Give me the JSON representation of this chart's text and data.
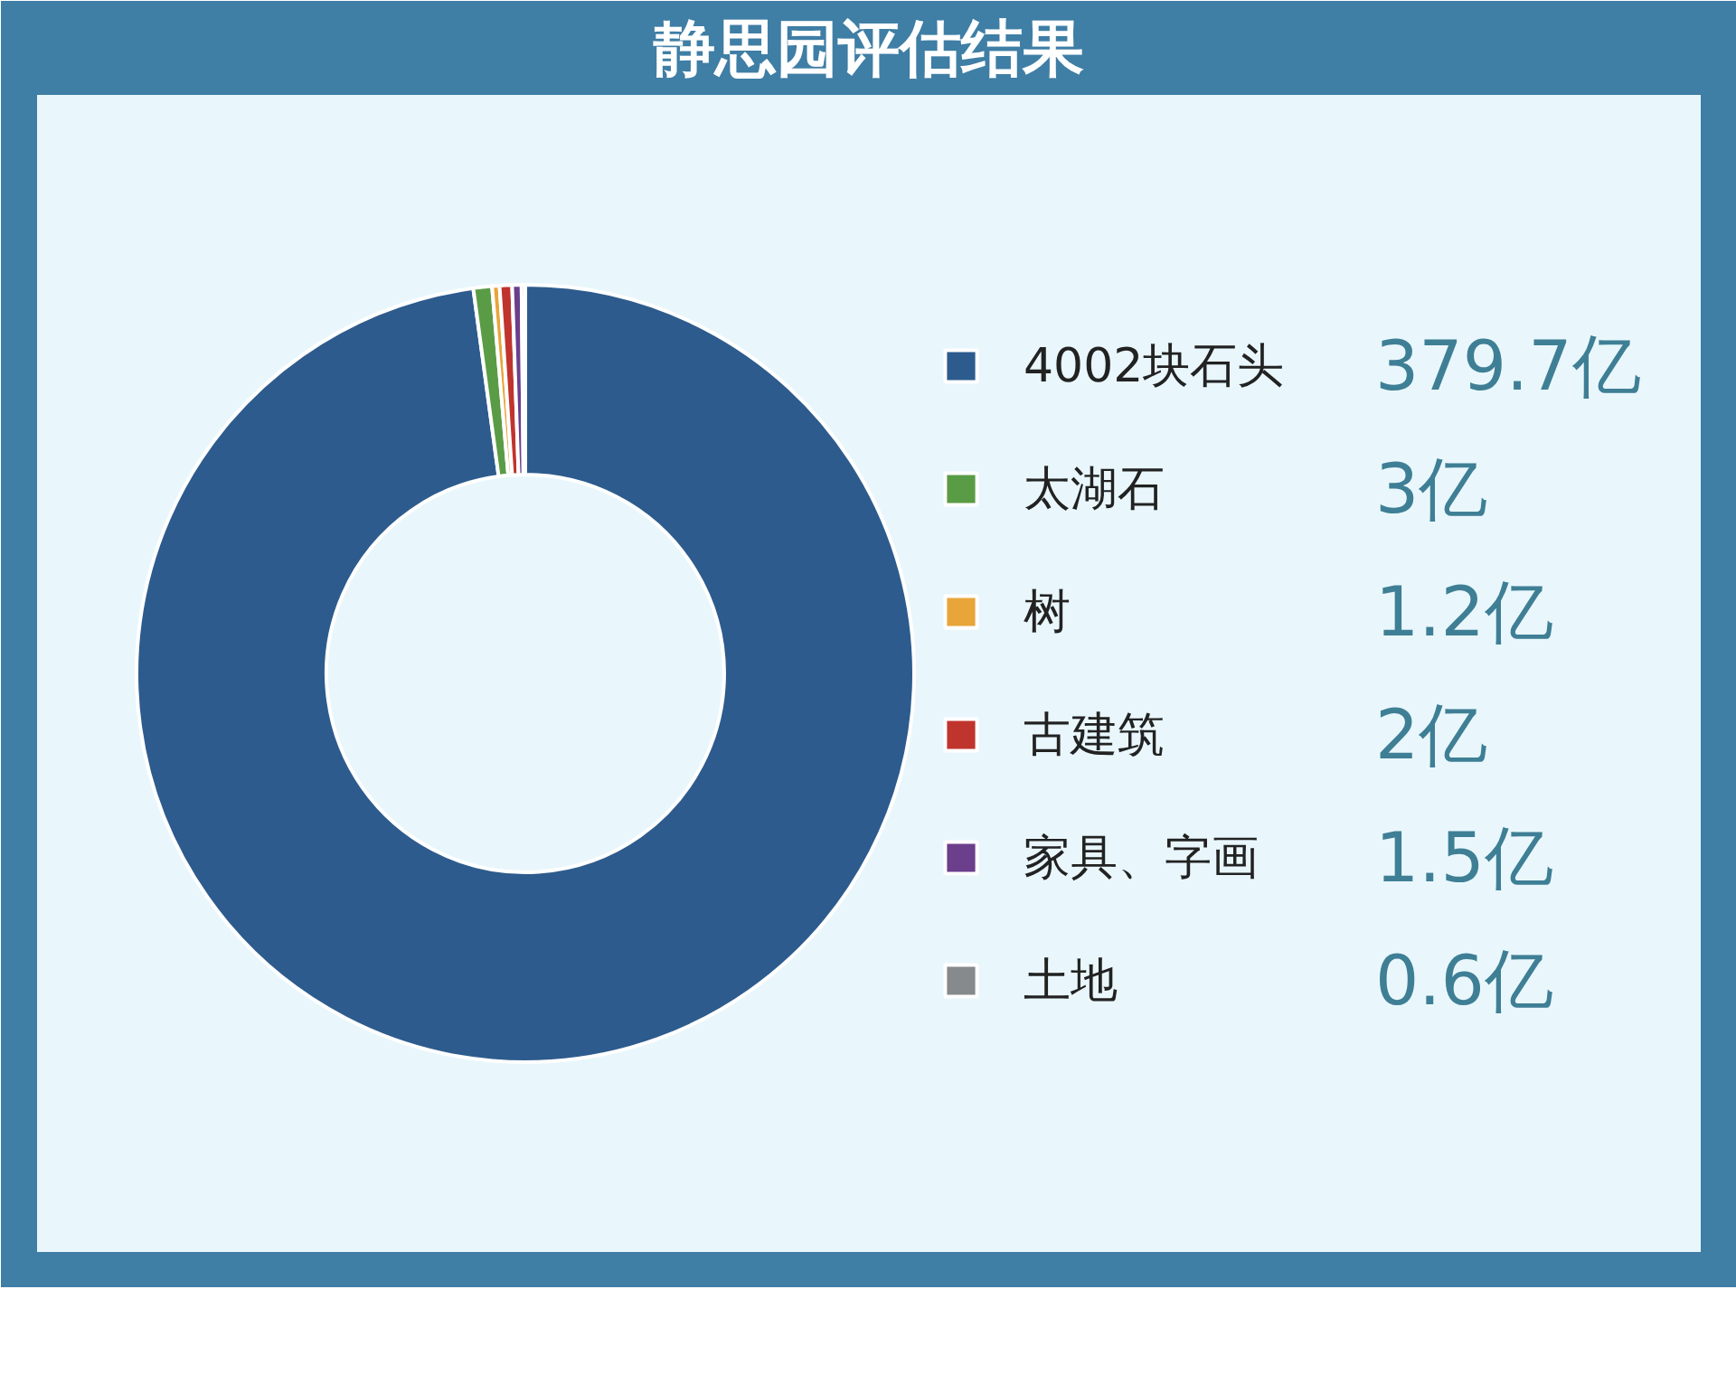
{
  "chart_data": {
    "type": "donut",
    "title": "静思园评估结果",
    "categories": [
      "4002块石头",
      "太湖石",
      "树",
      "古建筑",
      "家具、字画",
      "土地"
    ],
    "values": [
      379.7,
      3,
      1.2,
      2,
      1.5,
      0.6
    ],
    "colors": [
      "#2d5b8d",
      "#5a9c46",
      "#e8a53a",
      "#c0342e",
      "#6b3f8c",
      "#878a8d"
    ],
    "value_labels": [
      "379.7亿",
      "3亿",
      "1.2亿",
      "2亿",
      "1.5亿",
      "0.6亿"
    ],
    "legend": "right"
  }
}
